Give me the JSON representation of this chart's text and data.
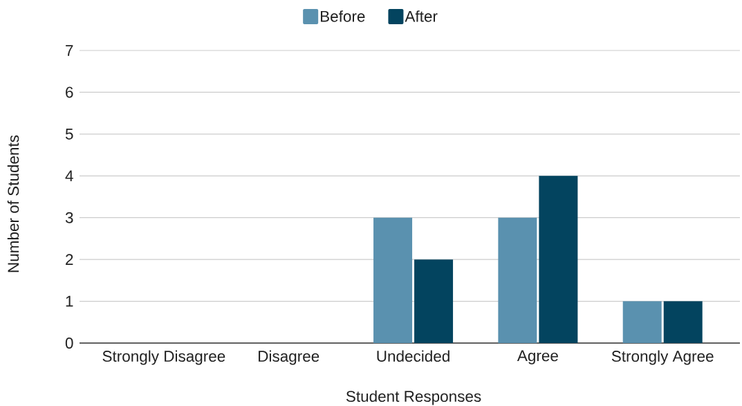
{
  "chart_data": {
    "type": "bar",
    "xlabel": "Student Responses",
    "ylabel": "Number of Students",
    "categories": [
      "Strongly Disagree",
      "Disagree",
      "Undecided",
      "Agree",
      "Strongly Agree"
    ],
    "series": [
      {
        "name": "Before",
        "color": "#5a91af",
        "values": [
          0,
          0,
          3,
          3,
          1
        ]
      },
      {
        "name": "After",
        "color": "#03445f",
        "values": [
          0,
          0,
          2,
          4,
          1
        ]
      }
    ],
    "ylim": [
      0,
      7
    ],
    "yticks": [
      0,
      1,
      2,
      3,
      4,
      5,
      6,
      7
    ],
    "grid": "y",
    "legend": "top"
  }
}
